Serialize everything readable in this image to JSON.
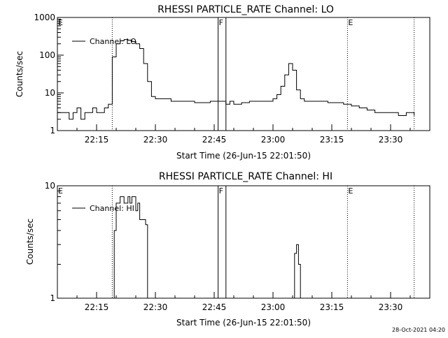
{
  "footer": {
    "timestamp": "28-Oct-2021 04:20"
  },
  "chart_data": [
    {
      "type": "line",
      "title": "RHESSI PARTICLE_RATE Channel: LO",
      "xlabel": "Start Time (26-Jun-15 22:01:50)",
      "ylabel": "Counts/sec",
      "yscale": "log",
      "ylim": [
        1,
        1000
      ],
      "yticks": [
        1,
        10,
        100,
        1000
      ],
      "ytick_labels": [
        "1",
        "10",
        "100",
        "1000"
      ],
      "xlim": [
        "22:05",
        "23:40"
      ],
      "xticks": [
        "22:15",
        "22:30",
        "22:45",
        "23:00",
        "23:15",
        "23:30"
      ],
      "grid": false,
      "legend_position": "top-left",
      "legend": [
        "Channel: LO"
      ],
      "color": "#000000",
      "markers": [
        {
          "label": "E",
          "type": "dotted",
          "time": "22:05"
        },
        {
          "label": "",
          "type": "dotted",
          "time": "22:19"
        },
        {
          "label": "F",
          "type": "solid",
          "time": "22:46"
        },
        {
          "label": "",
          "type": "solid",
          "time": "22:48"
        },
        {
          "label": "E",
          "type": "dotted",
          "time": "23:19"
        },
        {
          "label": "",
          "type": "dotted",
          "time": "23:36"
        }
      ],
      "series": [
        {
          "name": "Channel: LO",
          "x": [
            "22:05",
            "22:07",
            "22:08",
            "22:09",
            "22:10",
            "22:11",
            "22:12",
            "22:13",
            "22:14",
            "22:15",
            "22:16",
            "22:17",
            "22:18",
            "22:19",
            "22:20",
            "22:21",
            "22:22",
            "22:23",
            "22:24",
            "22:25",
            "22:26",
            "22:27",
            "22:28",
            "22:29",
            "22:30",
            "22:32",
            "22:34",
            "22:36",
            "22:38",
            "22:40",
            "22:42",
            "22:44",
            "22:46",
            "22:48",
            "22:49",
            "22:50",
            "22:52",
            "22:54",
            "22:56",
            "22:58",
            "23:00",
            "23:01",
            "23:02",
            "23:03",
            "23:04",
            "23:05",
            "23:06",
            "23:07",
            "23:08",
            "23:10",
            "23:12",
            "23:14",
            "23:16",
            "23:18",
            "23:20",
            "23:22",
            "23:24",
            "23:26",
            "23:28",
            "23:30",
            "23:32",
            "23:34",
            "23:36"
          ],
          "y": [
            3,
            3,
            2,
            3,
            4,
            2,
            3,
            3,
            4,
            3,
            3,
            4,
            5,
            90,
            200,
            240,
            260,
            250,
            230,
            200,
            150,
            60,
            20,
            8,
            7,
            7,
            6,
            6,
            6,
            5.5,
            5.5,
            6,
            6,
            5,
            6,
            5,
            5.5,
            6,
            6,
            6,
            7,
            9,
            15,
            30,
            60,
            40,
            12,
            7,
            6,
            6,
            6,
            5.5,
            5.5,
            5,
            4.5,
            4,
            3.5,
            3,
            3,
            3,
            2.5,
            3,
            2.5
          ]
        }
      ]
    },
    {
      "type": "line",
      "title": "RHESSI PARTICLE_RATE Channel: HI",
      "xlabel": "Start Time (26-Jun-15 22:01:50)",
      "ylabel": "Counts/sec",
      "yscale": "log",
      "ylim": [
        1,
        10
      ],
      "yticks": [
        1,
        10
      ],
      "ytick_labels": [
        "1",
        "10"
      ],
      "xlim": [
        "22:05",
        "23:40"
      ],
      "xticks": [
        "22:15",
        "22:30",
        "22:45",
        "23:00",
        "23:15",
        "23:30"
      ],
      "grid": false,
      "legend_position": "top-left",
      "legend": [
        "Channel: HI"
      ],
      "color": "#000000",
      "markers": [
        {
          "label": "E",
          "type": "dotted",
          "time": "22:05"
        },
        {
          "label": "",
          "type": "dotted",
          "time": "22:19"
        },
        {
          "label": "F",
          "type": "solid",
          "time": "22:46"
        },
        {
          "label": "",
          "type": "solid",
          "time": "22:48"
        },
        {
          "label": "E",
          "type": "dotted",
          "time": "23:19"
        },
        {
          "label": "",
          "type": "dotted",
          "time": "23:36"
        }
      ],
      "series": [
        {
          "name": "Channel: HI",
          "segments": [
            {
              "x": [
                "22:19",
                "22:19:30",
                "22:20",
                "22:21",
                "22:22",
                "22:23",
                "22:23:30",
                "22:24",
                "22:25",
                "22:25:30",
                "22:26",
                "22:27",
                "22:27:30",
                "22:28"
              ],
              "y": [
                1,
                4,
                7,
                8,
                7,
                8,
                7,
                8,
                6,
                7,
                5,
                5,
                4.5,
                1
              ]
            },
            {
              "x": [
                "23:05",
                "23:05:30",
                "23:06",
                "23:06:30",
                "23:07"
              ],
              "y": [
                1,
                2.5,
                3,
                2,
                1
              ]
            }
          ]
        }
      ]
    }
  ]
}
